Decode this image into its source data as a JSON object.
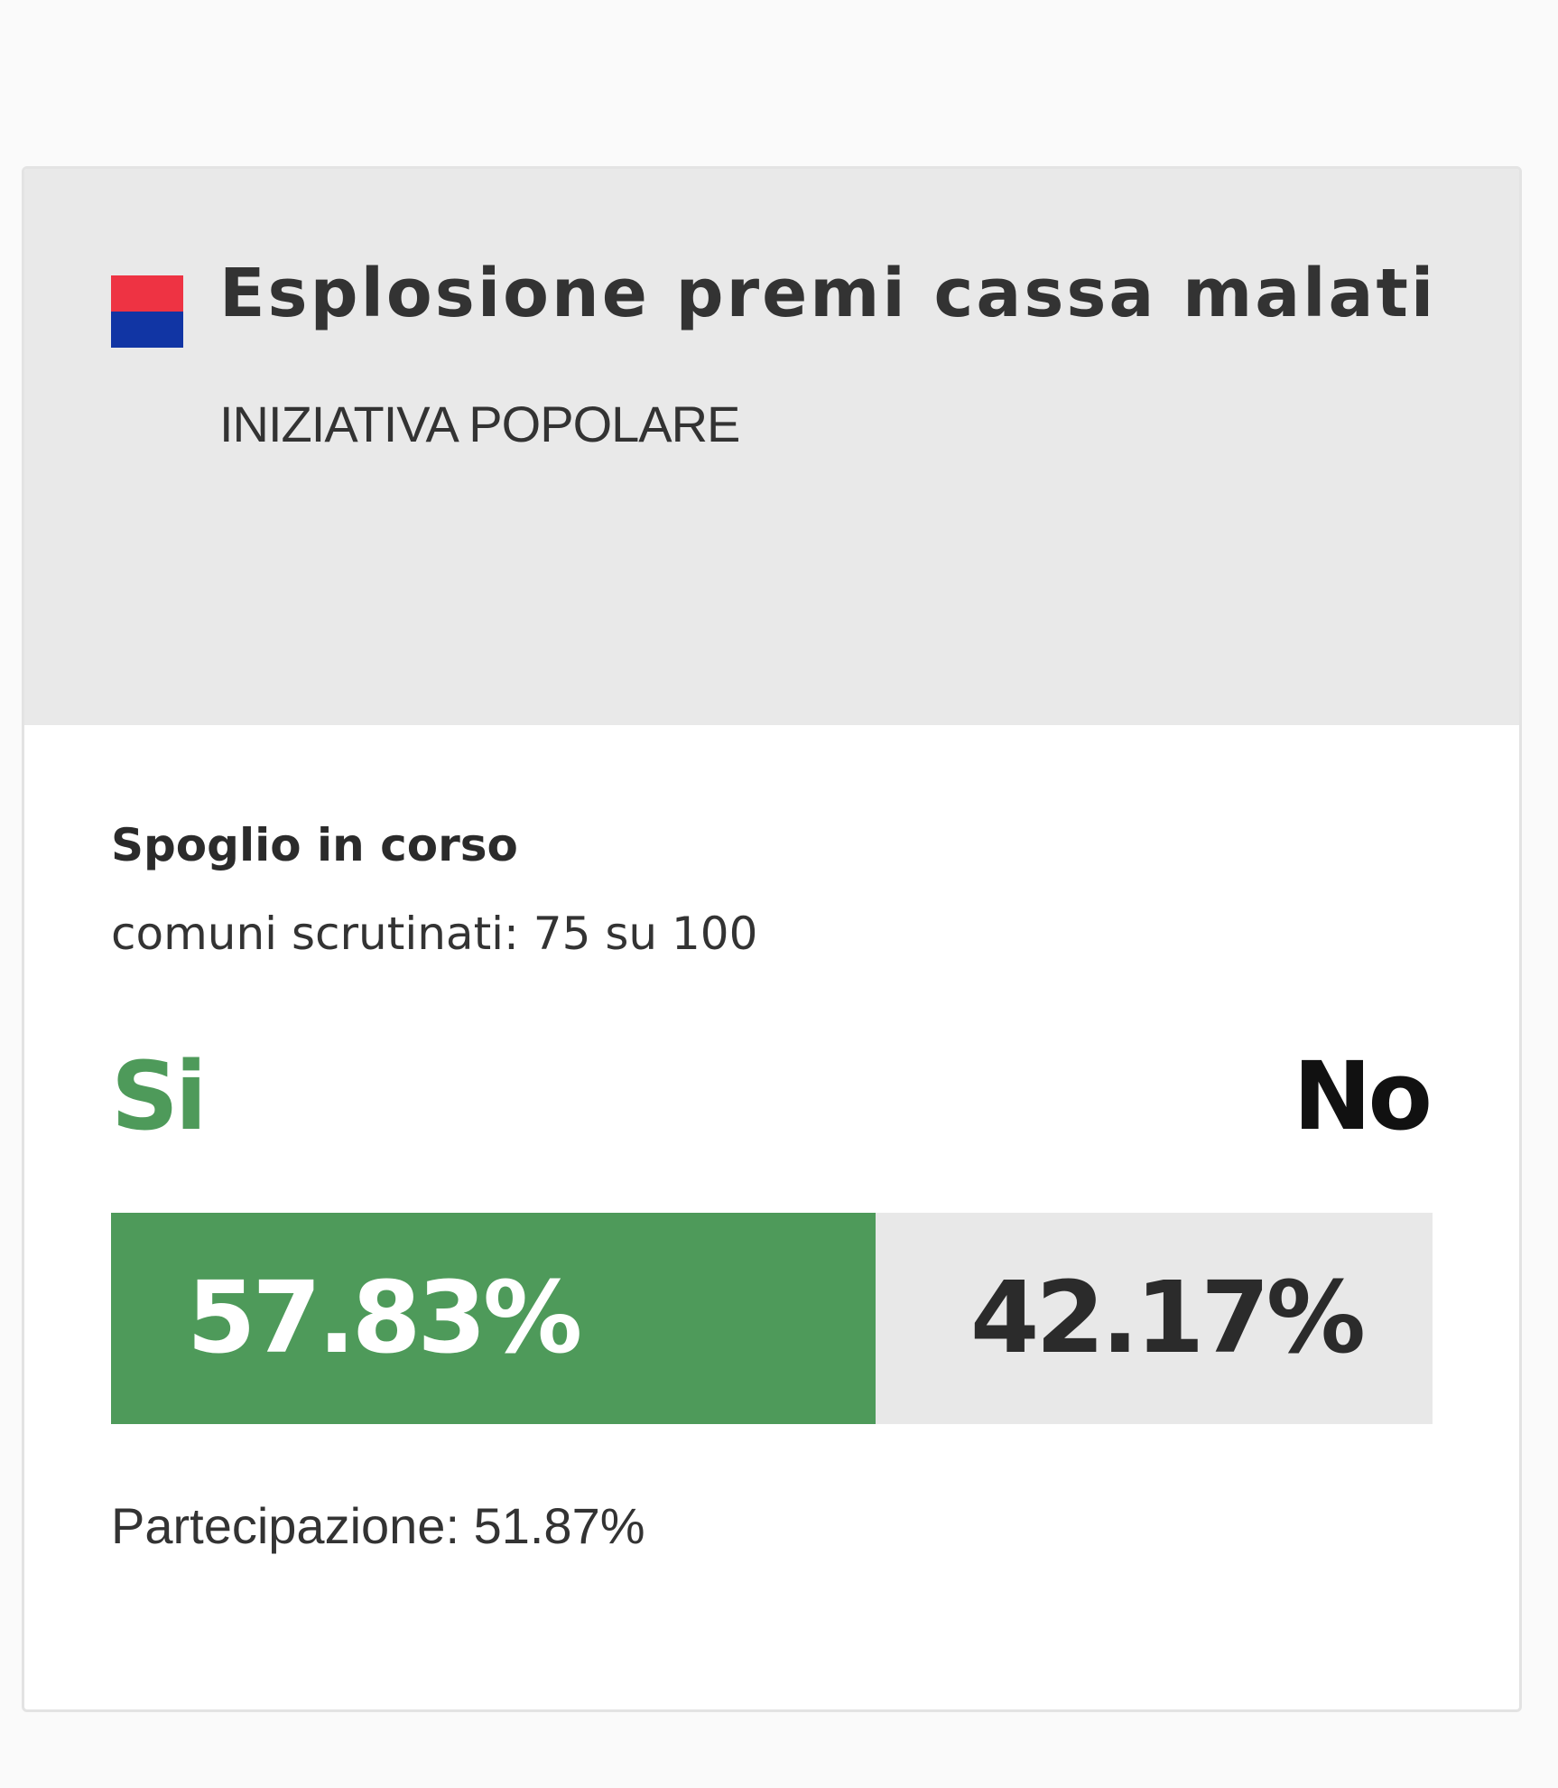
{
  "vote": {
    "title": "Esplosione premi cassa malati",
    "type": "INIZIATIVA POPOLARE",
    "flag_colors": [
      "#ee3343",
      "#1135a4"
    ],
    "status": "Spoglio in corso",
    "progress": "comuni scrutinati: 75 su 100",
    "yes_label": "Si",
    "no_label": "No",
    "yes_percent": "57.83%",
    "no_percent": "42.17%",
    "yes_share": 57.83,
    "turnout": "Partecipazione: 51.87%",
    "colors": {
      "yes": "#4e9a5a",
      "no_track": "#e8e8e8",
      "header_bg": "#e9e9e9"
    }
  }
}
